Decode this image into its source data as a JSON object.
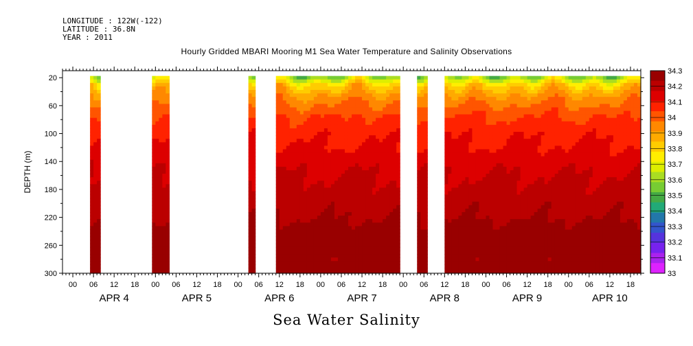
{
  "header": {
    "longitude": "LONGITUDE : 122W(-122)",
    "latitude": "LATITUDE : 36.8N",
    "year": "YEAR : 2011"
  },
  "chart_data": {
    "type": "heatmap",
    "title": "Hourly Gridded MBARI Mooring M1 Sea Water Temperature and Salinity Observations",
    "xlabel": "Sea Water Salinity",
    "ylabel": "DEPTH (m)",
    "ylim": [
      300,
      10
    ],
    "y_ticks": [
      20,
      60,
      100,
      140,
      180,
      220,
      260,
      300
    ],
    "x_hour_labels": [
      "00",
      "06",
      "12",
      "18",
      "00",
      "06",
      "12",
      "18",
      "00",
      "06",
      "12",
      "18",
      "00",
      "06",
      "12",
      "18",
      "00",
      "06",
      "12",
      "18",
      "00",
      "06",
      "12",
      "18",
      "00",
      "06",
      "12",
      "18"
    ],
    "x_day_labels": [
      "APR  4",
      "APR  5",
      "APR  6",
      "APR  7",
      "APR  8",
      "APR  9",
      "APR 10"
    ],
    "xlim_hours_from_apr4_00": [
      -3,
      165
    ],
    "colorbar": {
      "levels": [
        "34.3",
        "34.2",
        "34.1",
        "34",
        "33.9",
        "33.8",
        "33.7",
        "33.6",
        "33.5",
        "33.4",
        "33.3",
        "33.2",
        "33.1",
        "33"
      ],
      "colors": [
        "#990000",
        "#bb0000",
        "#dd0000",
        "#ff2200",
        "#ff5500",
        "#ff8800",
        "#ffaa00",
        "#ffcc00",
        "#ffee00",
        "#ddee00",
        "#aadd22",
        "#77cc33",
        "#44aa44",
        "#22aa77",
        "#2277aa",
        "#3355cc",
        "#5533dd",
        "#7722ee",
        "#aa22ee",
        "#dd22ff"
      ]
    },
    "data_segments_hours": [
      [
        5,
        8
      ],
      [
        23,
        28
      ],
      [
        51,
        53
      ],
      [
        59,
        95
      ],
      [
        100,
        103
      ],
      [
        108,
        165
      ]
    ],
    "profile_depths_m": [
      20,
      30,
      40,
      50,
      60,
      70,
      80,
      90,
      100,
      110,
      120,
      130,
      140,
      150,
      160,
      170,
      180,
      190,
      200,
      210,
      220,
      230,
      240,
      250,
      260,
      270,
      280,
      290,
      300
    ],
    "typical_profile_salinity": [
      33.62,
      33.8,
      33.88,
      33.94,
      33.98,
      34.02,
      34.05,
      34.07,
      34.09,
      34.1,
      34.11,
      34.13,
      34.14,
      34.16,
      34.17,
      34.18,
      34.19,
      34.2,
      34.21,
      34.22,
      34.23,
      34.25,
      34.27,
      34.3,
      34.31,
      34.28,
      34.26,
      34.27,
      34.28
    ]
  }
}
